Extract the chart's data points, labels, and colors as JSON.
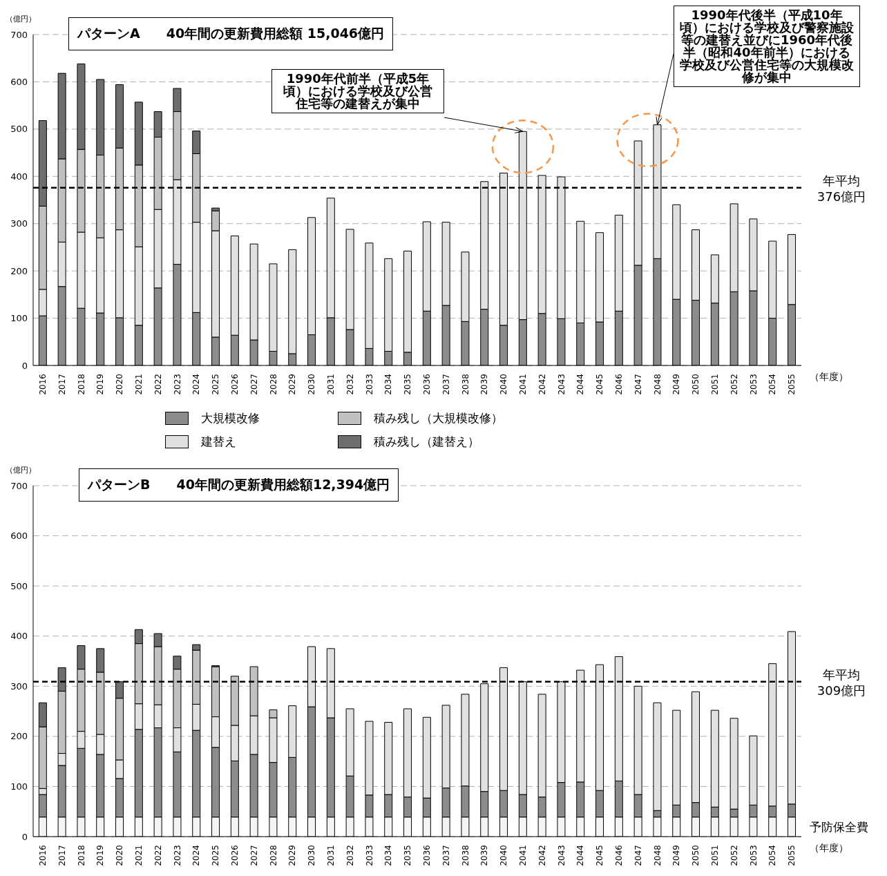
{
  "chart_data": [
    {
      "type": "bar",
      "title": "パターンA　　40年間の更新費用総額 15,046億円",
      "ylabel": "（億円）",
      "xlabel": "（年度）",
      "stacked": true,
      "grid": "y",
      "legend": "bottom",
      "ylim": [
        0,
        700
      ],
      "yticks": [
        0,
        100,
        200,
        300,
        400,
        500,
        600,
        700
      ],
      "categories": [
        "2016",
        "2017",
        "2018",
        "2019",
        "2020",
        "2021",
        "2022",
        "2023",
        "2024",
        "2025",
        "2026",
        "2027",
        "2028",
        "2029",
        "2030",
        "2031",
        "2032",
        "2033",
        "2034",
        "2035",
        "2036",
        "2037",
        "2038",
        "2039",
        "2040",
        "2041",
        "2042",
        "2043",
        "2044",
        "2045",
        "2046",
        "2047",
        "2048",
        "2049",
        "2050",
        "2051",
        "2052",
        "2053",
        "2054",
        "2055"
      ],
      "series": [
        {
          "name": "大規模改修",
          "color": "#8c8c8c",
          "values": [
            105,
            167,
            121,
            111,
            101,
            85,
            164,
            214,
            112,
            60,
            64,
            54,
            30,
            25,
            65,
            101,
            76,
            36,
            30,
            28,
            115,
            127,
            93,
            119,
            85,
            97,
            110,
            99,
            90,
            92,
            115,
            212,
            226,
            140,
            138,
            132,
            156,
            158,
            100,
            129
          ]
        },
        {
          "name": "建替え",
          "color": "#e0e0e0",
          "values": [
            56,
            94,
            161,
            159,
            186,
            166,
            166,
            179,
            191,
            225,
            210,
            203,
            185,
            220,
            248,
            253,
            212,
            223,
            196,
            214,
            189,
            176,
            147,
            270,
            322,
            398,
            292,
            300,
            215,
            189,
            203,
            263,
            283,
            200,
            149,
            102,
            186,
            152,
            163,
            148
          ]
        },
        {
          "name": "積み残し（大規模改修）",
          "color": "#c0c0c0",
          "values": [
            176,
            176,
            175,
            175,
            173,
            173,
            153,
            144,
            145,
            42,
            null,
            null,
            null,
            null,
            null,
            null,
            null,
            null,
            null,
            null,
            null,
            null,
            null,
            null,
            null,
            null,
            null,
            null,
            null,
            null,
            null,
            null,
            null,
            null,
            null,
            null,
            null,
            null,
            null,
            null
          ]
        },
        {
          "name": "積み残し（建替え）",
          "color": "#6e6e6e",
          "values": [
            181,
            181,
            181,
            160,
            134,
            133,
            54,
            49,
            48,
            6,
            null,
            null,
            null,
            null,
            null,
            null,
            null,
            null,
            null,
            null,
            null,
            null,
            null,
            null,
            null,
            null,
            null,
            null,
            null,
            null,
            null,
            null,
            null,
            null,
            null,
            null,
            null,
            null,
            null,
            null
          ]
        }
      ],
      "ref_lines": [
        {
          "axis": "y",
          "value": 376,
          "label": "年平均 376億円",
          "line_style": "dashed"
        }
      ],
      "annotations": [
        {
          "text": "1990年代前半（平成5年頃）における学校及び公営住宅等の建替えが集中",
          "x": "2041",
          "y": 495
        },
        {
          "text": "1990年代後半（平成10年頃）における学校及び警察施設等の建替え並びに1960年代後半（昭和40年前半）における学校及び公営住宅等の大規模改修が集中",
          "x": "2048",
          "y": 509
        }
      ]
    },
    {
      "type": "bar",
      "title": "パターンB　　40年間の更新費用総額12,394億円",
      "ylabel": "（億円）",
      "xlabel": "（年度）",
      "stacked": true,
      "grid": "y",
      "ylim": [
        0,
        700
      ],
      "yticks": [
        0,
        100,
        200,
        300,
        400,
        500,
        600,
        700
      ],
      "categories": [
        "2016",
        "2017",
        "2018",
        "2019",
        "2020",
        "2021",
        "2022",
        "2023",
        "2024",
        "2025",
        "2026",
        "2027",
        "2028",
        "2029",
        "2030",
        "2031",
        "2032",
        "2033",
        "2034",
        "2035",
        "2036",
        "2037",
        "2038",
        "2039",
        "2040",
        "2041",
        "2042",
        "2043",
        "2044",
        "2045",
        "2046",
        "2047",
        "2048",
        "2049",
        "2050",
        "2051",
        "2052",
        "2053",
        "2054",
        "2055"
      ],
      "series": [
        {
          "name": "予防保全費",
          "color": "#f4f4f4",
          "values": [
            39,
            39,
            39,
            39,
            39,
            39,
            39,
            39,
            39,
            39,
            39,
            39,
            39,
            39,
            39,
            39,
            39,
            39,
            39,
            39,
            39,
            39,
            39,
            39,
            39,
            39,
            39,
            39,
            39,
            39,
            39,
            39,
            39,
            39,
            39,
            39,
            39,
            39,
            39,
            39
          ]
        },
        {
          "color": "#8c8c8c",
          "values": [
            45,
            103,
            137,
            125,
            77,
            175,
            178,
            130,
            173,
            139,
            112,
            125,
            109,
            119,
            220,
            198,
            82,
            44,
            45,
            40,
            38,
            58,
            62,
            51,
            53,
            45,
            40,
            69,
            70,
            53,
            72,
            45,
            13,
            24,
            29,
            20,
            16,
            24,
            22,
            26
          ]
        },
        {
          "color": "#e0e0e0",
          "values": [
            12,
            24,
            34,
            40,
            37,
            51,
            46,
            48,
            52,
            61,
            71,
            77,
            89,
            103,
            120,
            138,
            134,
            147,
            144,
            176,
            161,
            165,
            183,
            215,
            245,
            225,
            205,
            201,
            223,
            251,
            248,
            216,
            215,
            189,
            221,
            193,
            181,
            138,
            284,
            344
          ]
        },
        {
          "color": "#c0c0c0",
          "values": [
            123,
            124,
            124,
            124,
            123,
            120,
            116,
            117,
            108,
            100,
            98,
            98,
            16,
            null,
            null,
            null,
            null,
            null,
            null,
            null,
            null,
            null,
            null,
            null,
            null,
            null,
            null,
            null,
            null,
            null,
            null,
            null,
            null,
            null,
            null,
            null,
            null,
            null,
            null,
            null
          ]
        },
        {
          "color": "#6e6e6e",
          "values": [
            48,
            47,
            47,
            47,
            33,
            28,
            26,
            26,
            11,
            2,
            null,
            null,
            null,
            null,
            null,
            null,
            null,
            null,
            null,
            null,
            null,
            null,
            null,
            null,
            null,
            null,
            null,
            null,
            null,
            null,
            null,
            null,
            null,
            null,
            null,
            null,
            null,
            null,
            null,
            null
          ]
        }
      ],
      "ref_lines": [
        {
          "axis": "y",
          "value": 309,
          "label": "年平均 309億円",
          "line_style": "dashed"
        }
      ]
    }
  ]
}
